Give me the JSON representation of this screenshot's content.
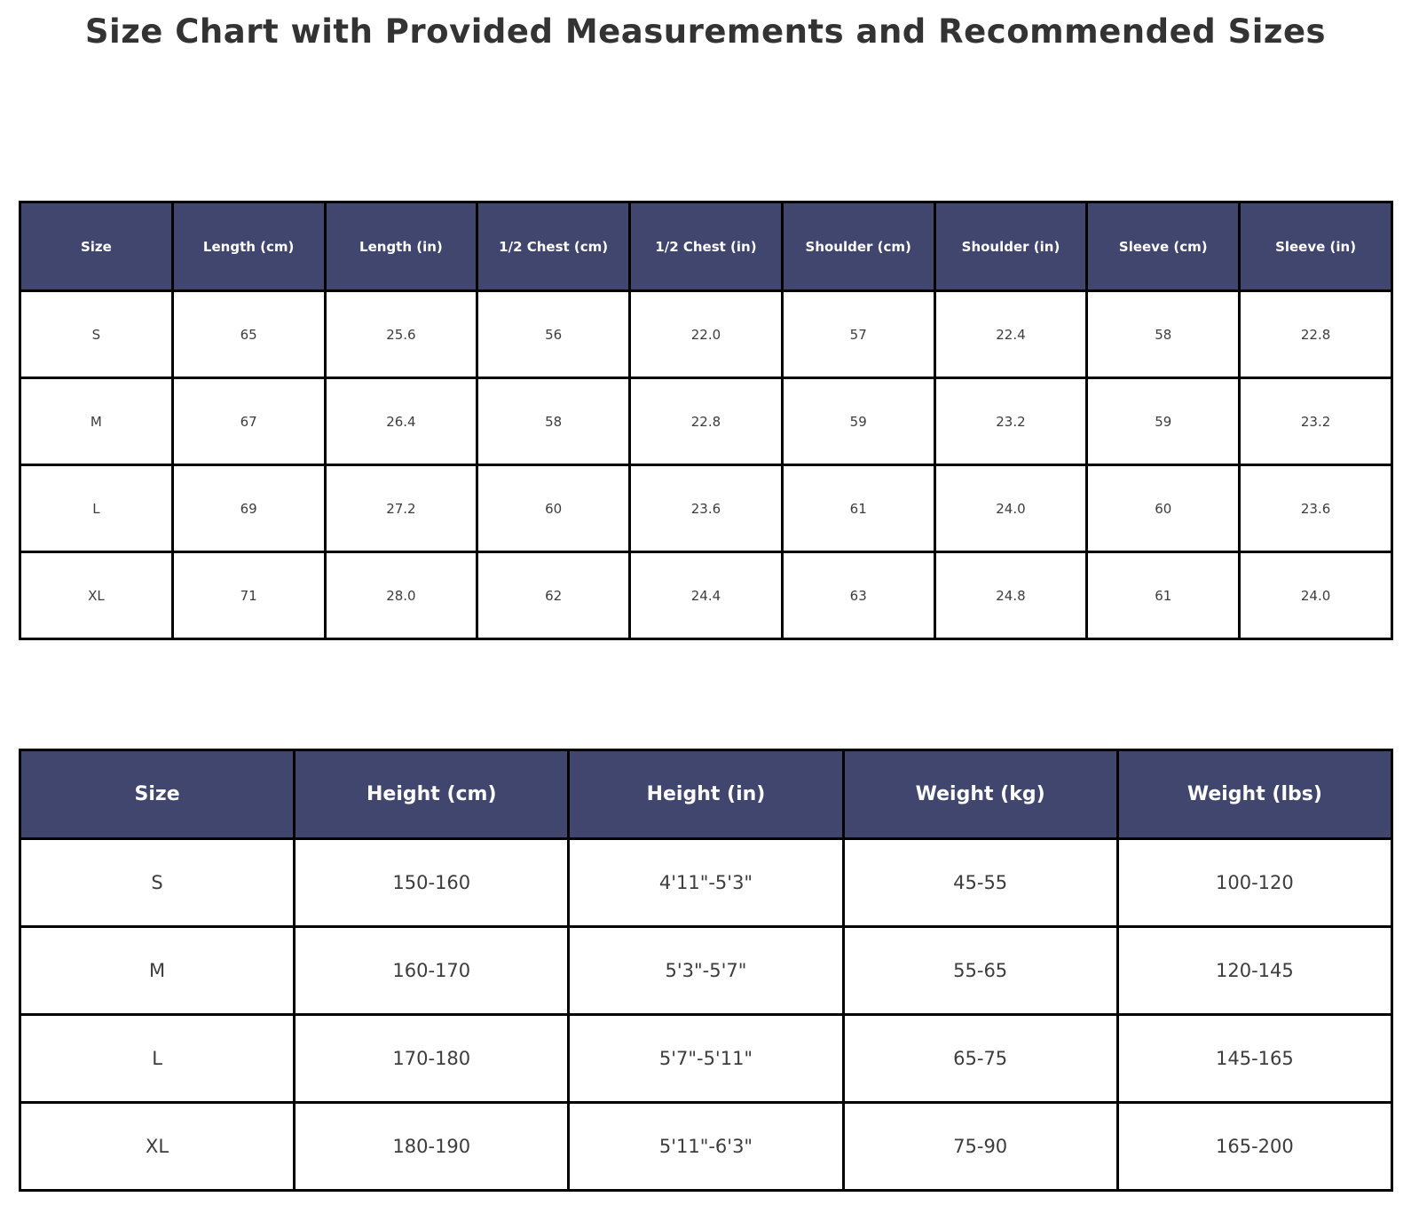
{
  "title": "Size Chart with Provided Measurements and Recommended Sizes",
  "colors": {
    "header_bg": "#40466e",
    "header_text": "#ffffff",
    "cell_text": "#3d3d3d",
    "border": "#000000",
    "title_text": "#333333",
    "body_bg": "#ffffff"
  },
  "chart_data": [
    {
      "type": "table",
      "columns": [
        "Size",
        "Length (cm)",
        "Length (in)",
        "1/2 Chest (cm)",
        "1/2 Chest (in)",
        "Shoulder (cm)",
        "Shoulder (in)",
        "Sleeve (cm)",
        "Sleeve (in)"
      ],
      "rows": [
        [
          "S",
          "65",
          "25.6",
          "56",
          "22.0",
          "57",
          "22.4",
          "58",
          "22.8"
        ],
        [
          "M",
          "67",
          "26.4",
          "58",
          "22.8",
          "59",
          "23.2",
          "59",
          "23.2"
        ],
        [
          "L",
          "69",
          "27.2",
          "60",
          "23.6",
          "61",
          "24.0",
          "60",
          "23.6"
        ],
        [
          "XL",
          "71",
          "28.0",
          "62",
          "24.4",
          "63",
          "24.8",
          "61",
          "24.0"
        ]
      ]
    },
    {
      "type": "table",
      "columns": [
        "Size",
        "Height (cm)",
        "Height (in)",
        "Weight (kg)",
        "Weight (lbs)"
      ],
      "rows": [
        [
          "S",
          "150-160",
          "4'11\"-5'3\"",
          "45-55",
          "100-120"
        ],
        [
          "M",
          "160-170",
          "5'3\"-5'7\"",
          "55-65",
          "120-145"
        ],
        [
          "L",
          "170-180",
          "5'7\"-5'11\"",
          "65-75",
          "145-165"
        ],
        [
          "XL",
          "180-190",
          "5'11\"-6'3\"",
          "75-90",
          "165-200"
        ]
      ]
    }
  ]
}
